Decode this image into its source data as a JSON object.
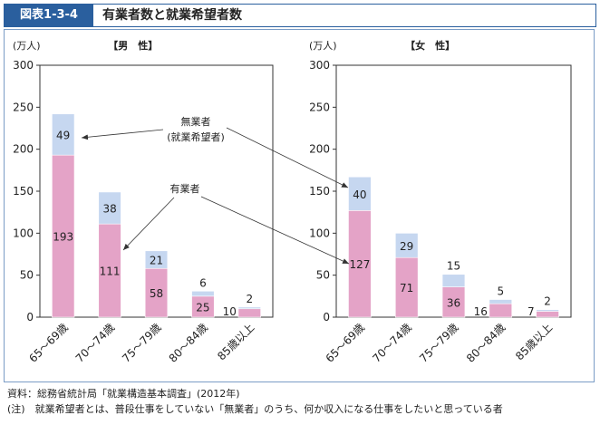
{
  "header": {
    "figure_number": "図表1-3-4",
    "title": "有業者数と就業希望者数"
  },
  "notes": {
    "source": "資料：総務省統計局「就業構造基本調査」(2012年)",
    "note": "(注)　就業希望者とは、普段仕事をしていない「無業者」のうち、何か収入になる仕事をしたいと思っている者"
  },
  "annotations": {
    "nonworker_line1": "無業者",
    "nonworker_line2": "(就業希望者)",
    "worker": "有業者"
  },
  "colors": {
    "worker": "#e4a3c7",
    "nonworker": "#c6d7f0",
    "title_bg": "#2a5f9e"
  },
  "chart_data": [
    {
      "type": "bar",
      "stacked": true,
      "title": "【男　性】",
      "unit_label": "(万人)",
      "categories": [
        "65～69歳",
        "70～74歳",
        "75～79歳",
        "80～84歳",
        "85歳以上"
      ],
      "ylim": [
        0,
        300
      ],
      "yticks": [
        0,
        50,
        100,
        150,
        200,
        250,
        300
      ],
      "grid": false,
      "series": [
        {
          "name": "有業者",
          "values": [
            193,
            111,
            58,
            25,
            10
          ]
        },
        {
          "name": "無業者(就業希望者)",
          "values": [
            49,
            38,
            21,
            6,
            2
          ]
        }
      ]
    },
    {
      "type": "bar",
      "stacked": true,
      "title": "【女　性】",
      "unit_label": "(万人)",
      "categories": [
        "65～69歳",
        "70～74歳",
        "75～79歳",
        "80～84歳",
        "85歳以上"
      ],
      "ylim": [
        0,
        300
      ],
      "yticks": [
        0,
        50,
        100,
        150,
        200,
        250,
        300
      ],
      "grid": false,
      "series": [
        {
          "name": "有業者",
          "values": [
            127,
            71,
            36,
            16,
            7
          ]
        },
        {
          "name": "無業者(就業希望者)",
          "values": [
            40,
            29,
            15,
            5,
            2
          ]
        }
      ]
    }
  ]
}
